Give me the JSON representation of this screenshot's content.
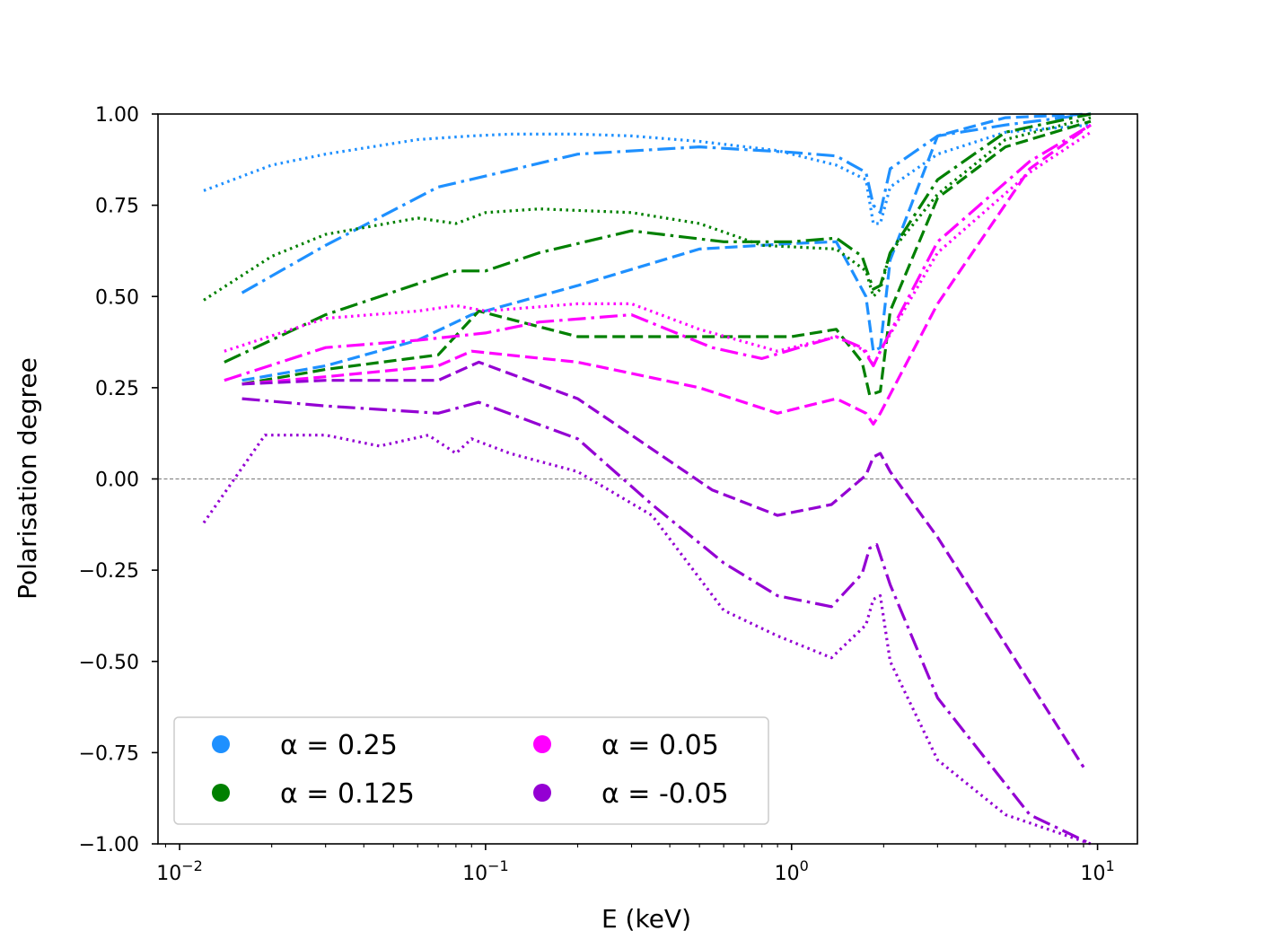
{
  "chart_data": {
    "type": "line",
    "title": "",
    "xlabel": "E (keV)",
    "ylabel": "Polarisation degree",
    "xscale": "log",
    "xlim": [
      0.0085,
      13.5
    ],
    "ylim": [
      -1.0,
      1.0
    ],
    "x_ticks": [
      {
        "value": 0.01,
        "base": "10",
        "exp": "−2"
      },
      {
        "value": 0.1,
        "base": "10",
        "exp": "−1"
      },
      {
        "value": 1,
        "base": "10",
        "exp": "0"
      },
      {
        "value": 10,
        "base": "10",
        "exp": "1"
      }
    ],
    "y_ticks": [
      {
        "value": 1.0,
        "label": "1.00"
      },
      {
        "value": 0.75,
        "label": "0.75"
      },
      {
        "value": 0.5,
        "label": "0.50"
      },
      {
        "value": 0.25,
        "label": "0.25"
      },
      {
        "value": 0.0,
        "label": "0.00"
      },
      {
        "value": -0.25,
        "label": "−0.25"
      },
      {
        "value": -0.5,
        "label": "−0.50"
      },
      {
        "value": -0.75,
        "label": "−0.75"
      },
      {
        "value": -1.0,
        "label": "−1.00"
      }
    ],
    "reference_line": {
      "y": 0,
      "color": "#888888"
    },
    "legend": {
      "position": "lower-left",
      "entries": [
        {
          "label": "α = 0.25",
          "color": "#1e90ff"
        },
        {
          "label": "α = 0.125",
          "color": "#008000"
        },
        {
          "label": "α = 0.05",
          "color": "#ff00ff"
        },
        {
          "label": "α = -0.05",
          "color": "#9400d3"
        }
      ]
    },
    "series": [
      {
        "name": "alpha-0.25-dotted",
        "group": "α = 0.25",
        "color": "#1e90ff",
        "style": "dotted",
        "x": [
          0.012,
          0.02,
          0.03,
          0.06,
          0.09,
          0.12,
          0.2,
          0.3,
          0.5,
          0.9,
          1.4,
          1.75,
          1.85,
          1.95,
          2.1,
          3.0,
          5.0,
          9.5
        ],
        "y": [
          0.79,
          0.86,
          0.89,
          0.93,
          0.94,
          0.945,
          0.945,
          0.94,
          0.925,
          0.9,
          0.86,
          0.82,
          0.7,
          0.7,
          0.8,
          0.89,
          0.95,
          0.97
        ]
      },
      {
        "name": "alpha-0.25-dashdot",
        "group": "α = 0.25",
        "color": "#1e90ff",
        "style": "dashdot",
        "x": [
          0.016,
          0.03,
          0.07,
          0.1,
          0.2,
          0.5,
          1.0,
          1.4,
          1.75,
          1.85,
          1.95,
          2.1,
          3.0,
          5.0,
          9.5
        ],
        "y": [
          0.51,
          0.64,
          0.8,
          0.83,
          0.89,
          0.91,
          0.895,
          0.885,
          0.84,
          0.75,
          0.73,
          0.85,
          0.94,
          0.97,
          1.0
        ]
      },
      {
        "name": "alpha-0.25-dashed",
        "group": "α = 0.25",
        "color": "#1e90ff",
        "style": "dashed",
        "x": [
          0.016,
          0.03,
          0.06,
          0.09,
          0.2,
          0.5,
          1.0,
          1.4,
          1.75,
          1.85,
          1.95,
          2.1,
          3.0,
          5.0,
          9.5
        ],
        "y": [
          0.27,
          0.31,
          0.38,
          0.45,
          0.53,
          0.63,
          0.645,
          0.65,
          0.5,
          0.35,
          0.36,
          0.6,
          0.94,
          0.99,
          1.0
        ]
      },
      {
        "name": "alpha-0.125-dotted",
        "group": "α = 0.125",
        "color": "#008000",
        "style": "dotted",
        "x": [
          0.012,
          0.02,
          0.03,
          0.06,
          0.08,
          0.1,
          0.15,
          0.3,
          0.5,
          0.8,
          1.4,
          1.75,
          1.85,
          1.95,
          2.1,
          3.0,
          5.0,
          9.5
        ],
        "y": [
          0.49,
          0.61,
          0.67,
          0.715,
          0.7,
          0.73,
          0.74,
          0.73,
          0.7,
          0.64,
          0.63,
          0.57,
          0.5,
          0.52,
          0.62,
          0.78,
          0.93,
          0.99
        ]
      },
      {
        "name": "alpha-0.125-dashdot",
        "group": "α = 0.125",
        "color": "#008000",
        "style": "dashdot",
        "x": [
          0.014,
          0.03,
          0.08,
          0.1,
          0.15,
          0.3,
          0.6,
          1.0,
          1.4,
          1.7,
          1.85,
          1.95,
          2.1,
          3.0,
          5.0,
          9.5
        ],
        "y": [
          0.32,
          0.45,
          0.57,
          0.57,
          0.62,
          0.68,
          0.65,
          0.65,
          0.66,
          0.61,
          0.52,
          0.53,
          0.62,
          0.82,
          0.95,
          1.0
        ]
      },
      {
        "name": "alpha-0.125-dashed",
        "group": "α = 0.125",
        "color": "#008000",
        "style": "dashed",
        "x": [
          0.016,
          0.03,
          0.07,
          0.095,
          0.2,
          0.5,
          1.0,
          1.4,
          1.7,
          1.8,
          1.95,
          2.1,
          3.0,
          5.0,
          9.5
        ],
        "y": [
          0.26,
          0.3,
          0.34,
          0.46,
          0.39,
          0.39,
          0.39,
          0.41,
          0.32,
          0.23,
          0.24,
          0.46,
          0.77,
          0.91,
          0.98
        ]
      },
      {
        "name": "alpha-0.05-dotted",
        "group": "α = 0.05",
        "color": "#ff00ff",
        "style": "dotted",
        "x": [
          0.014,
          0.03,
          0.06,
          0.08,
          0.1,
          0.2,
          0.3,
          0.5,
          0.9,
          1.4,
          1.75,
          1.85,
          1.95,
          3.0,
          6.0,
          9.5
        ],
        "y": [
          0.35,
          0.44,
          0.46,
          0.475,
          0.46,
          0.48,
          0.48,
          0.41,
          0.35,
          0.39,
          0.35,
          0.31,
          0.35,
          0.62,
          0.84,
          0.95
        ]
      },
      {
        "name": "alpha-0.05-dashdot",
        "group": "α = 0.05",
        "color": "#ff00ff",
        "style": "dashdot",
        "x": [
          0.014,
          0.03,
          0.06,
          0.1,
          0.15,
          0.3,
          0.55,
          0.8,
          1.4,
          1.7,
          1.85,
          1.95,
          3.0,
          6.0,
          9.5
        ],
        "y": [
          0.27,
          0.36,
          0.38,
          0.4,
          0.43,
          0.45,
          0.36,
          0.33,
          0.39,
          0.36,
          0.31,
          0.35,
          0.65,
          0.87,
          0.97
        ]
      },
      {
        "name": "alpha-0.05-dashed",
        "group": "α = 0.05",
        "color": "#ff00ff",
        "style": "dashed",
        "x": [
          0.016,
          0.03,
          0.07,
          0.09,
          0.2,
          0.5,
          0.9,
          1.4,
          1.75,
          1.85,
          1.95,
          3.0,
          6.0,
          9.5
        ],
        "y": [
          0.26,
          0.28,
          0.31,
          0.35,
          0.32,
          0.25,
          0.18,
          0.22,
          0.18,
          0.15,
          0.18,
          0.48,
          0.85,
          0.97
        ]
      },
      {
        "name": "alpha-minus0.05-dotted",
        "group": "α = -0.05",
        "color": "#9400d3",
        "style": "dotted",
        "x": [
          0.012,
          0.019,
          0.03,
          0.045,
          0.065,
          0.08,
          0.09,
          0.12,
          0.2,
          0.35,
          0.6,
          0.9,
          1.35,
          1.75,
          1.85,
          1.95,
          2.1,
          3.0,
          5.0,
          9.5
        ],
        "y": [
          -0.12,
          0.12,
          0.12,
          0.09,
          0.12,
          0.07,
          0.11,
          0.07,
          0.02,
          -0.1,
          -0.36,
          -0.43,
          -0.49,
          -0.4,
          -0.33,
          -0.32,
          -0.5,
          -0.77,
          -0.92,
          -1.0
        ]
      },
      {
        "name": "alpha-minus0.05-dashdot",
        "group": "α = -0.05",
        "color": "#9400d3",
        "style": "dashdot",
        "x": [
          0.016,
          0.03,
          0.07,
          0.095,
          0.2,
          0.35,
          0.6,
          0.9,
          1.35,
          1.7,
          1.8,
          1.9,
          2.1,
          3.0,
          6.0,
          9.5
        ],
        "y": [
          0.22,
          0.2,
          0.18,
          0.21,
          0.11,
          -0.07,
          -0.23,
          -0.32,
          -0.35,
          -0.26,
          -0.19,
          -0.18,
          -0.29,
          -0.6,
          -0.92,
          -1.0
        ]
      },
      {
        "name": "alpha-minus0.05-dashed",
        "group": "α = -0.05",
        "color": "#9400d3",
        "style": "dashed",
        "x": [
          0.016,
          0.03,
          0.07,
          0.095,
          0.2,
          0.3,
          0.55,
          0.9,
          1.35,
          1.75,
          1.85,
          1.95,
          2.1,
          3.0,
          9.0
        ],
        "y": [
          0.26,
          0.27,
          0.27,
          0.32,
          0.22,
          0.12,
          -0.03,
          -0.1,
          -0.07,
          0.01,
          0.06,
          0.07,
          0.02,
          -0.16,
          -0.79
        ]
      }
    ]
  }
}
